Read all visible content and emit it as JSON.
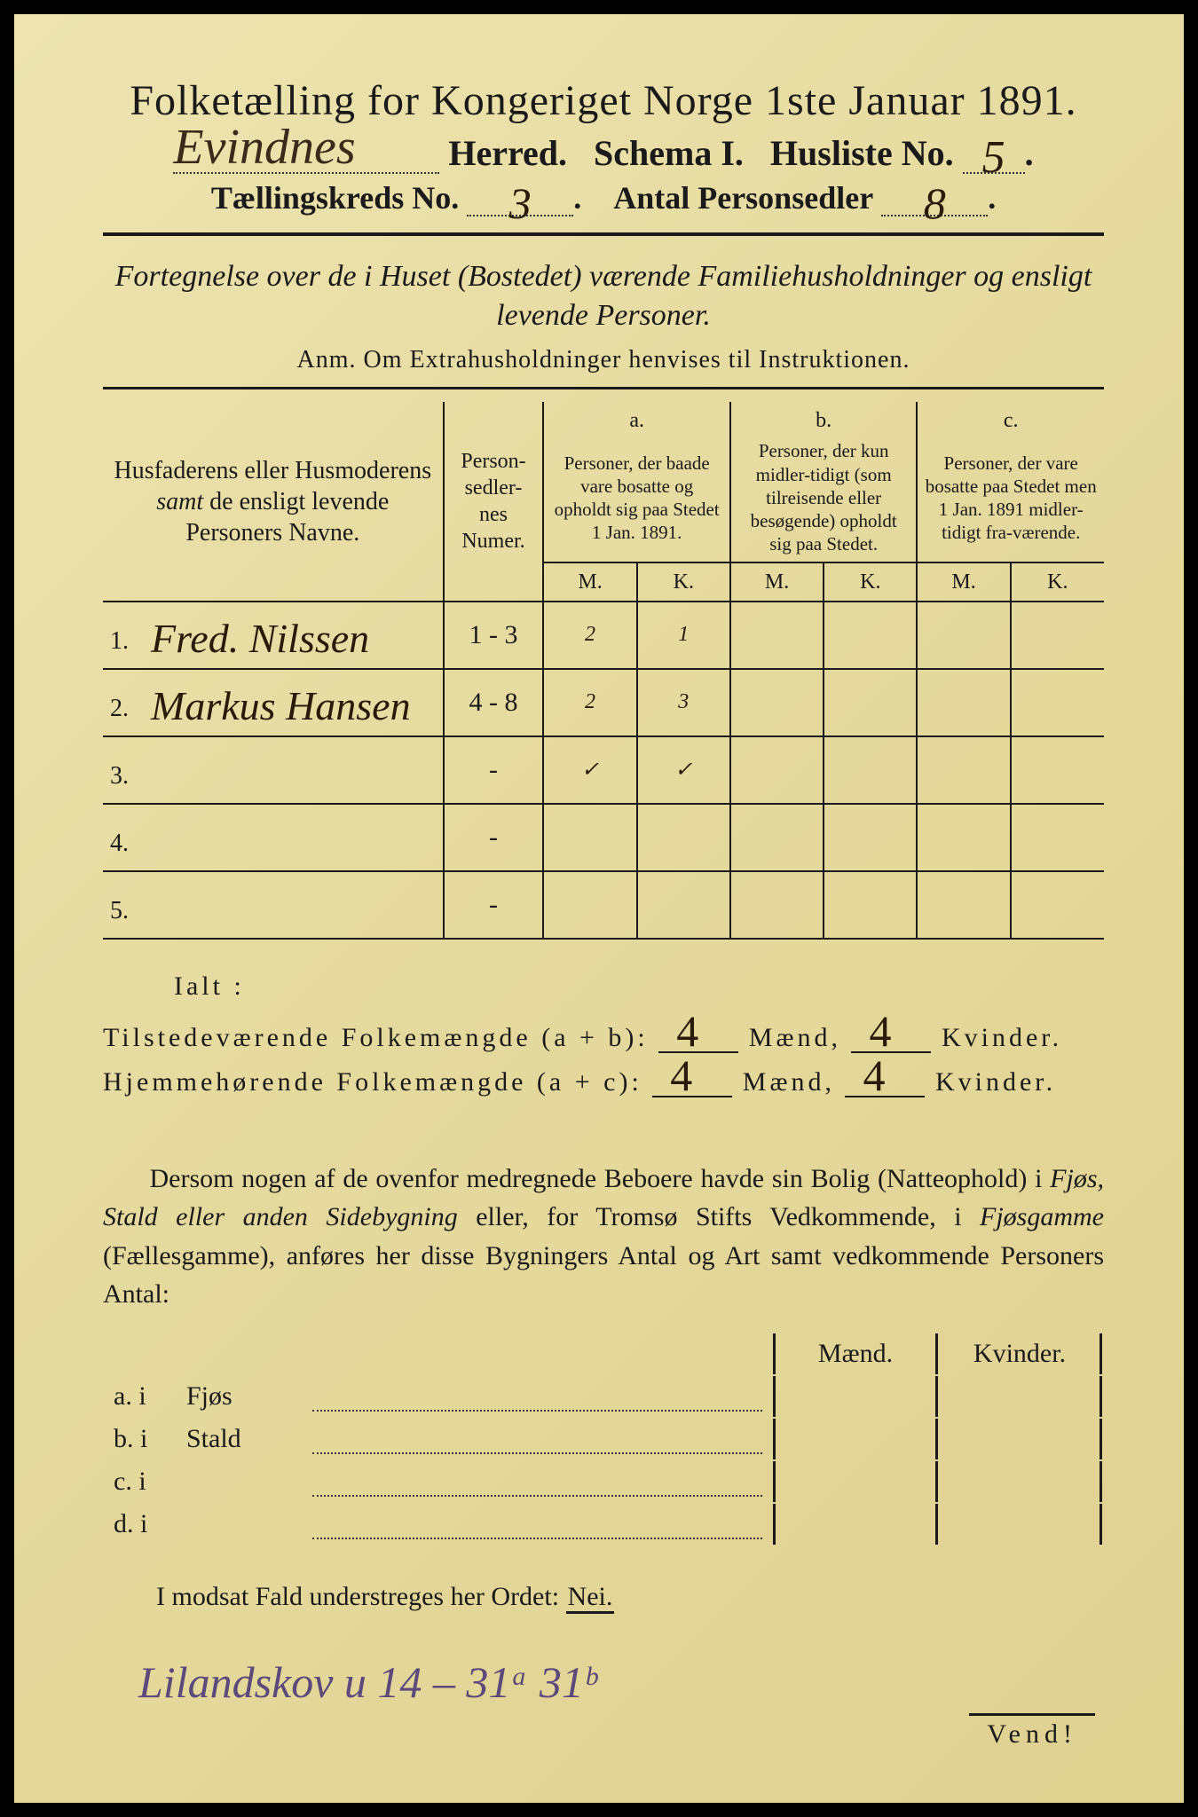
{
  "title": "Folketælling for Kongeriget Norge 1ste Januar 1891.",
  "line2": {
    "herred_hw": "Evindnes",
    "herred_label": "Herred.",
    "schema": "Schema I.",
    "husliste": "Husliste No.",
    "husliste_no_hw": "5"
  },
  "line3": {
    "kreds_label": "Tællingskreds No.",
    "kreds_no_hw": "3",
    "person_label": "Antal Personsedler",
    "person_no_hw": "8"
  },
  "fortegnelse": "Fortegnelse over de i Huset (Bostedet) værende Familiehusholdninger og ensligt levende Personer.",
  "anm": "Anm.  Om Extrahusholdninger henvises til Instruktionen.",
  "table": {
    "head_name": "Husfaderens eller Husmoderens samt de ensligt levende Personers Navne.",
    "head_num": "Person-sedler-nes Numer.",
    "head_a_top": "a.",
    "head_a": "Personer, der baade vare bosatte og opholdt sig paa Stedet 1 Jan. 1891.",
    "head_b_top": "b.",
    "head_b": "Personer, der kun midler-tidigt (som tilreisende eller besøgende) opholdt sig paa Stedet.",
    "head_c_top": "c.",
    "head_c": "Personer, der vare bosatte paa Stedet men 1 Jan. 1891 midler-tidigt fra-værende.",
    "M": "M.",
    "K": "K.",
    "rows": [
      {
        "n": "1.",
        "name": "Fred. Nilssen",
        "num": "1 - 3",
        "aM": "2",
        "aK": "1",
        "bM": "",
        "bK": "",
        "cM": "",
        "cK": ""
      },
      {
        "n": "2.",
        "name": "Markus Hansen",
        "num": "4 - 8",
        "aM": "2",
        "aK": "3",
        "bM": "",
        "bK": "",
        "cM": "",
        "cK": ""
      },
      {
        "n": "3.",
        "name": "",
        "num": "-",
        "aM": "✓",
        "aK": "✓",
        "bM": "",
        "bK": "",
        "cM": "",
        "cK": ""
      },
      {
        "n": "4.",
        "name": "",
        "num": "-",
        "aM": "",
        "aK": "",
        "bM": "",
        "bK": "",
        "cM": "",
        "cK": ""
      },
      {
        "n": "5.",
        "name": "",
        "num": "-",
        "aM": "",
        "aK": "",
        "bM": "",
        "bK": "",
        "cM": "",
        "cK": ""
      }
    ]
  },
  "ialt": "Ialt :",
  "sum1_label": "Tilstedeværende Folkemængde (a + b):",
  "sum2_label": "Hjemmehørende Folkemængde (a + c):",
  "maend": "Mænd,",
  "kvinder": "Kvinder.",
  "sum1_m": "4",
  "sum1_k": "4",
  "sum2_m": "4",
  "sum2_k": "4",
  "dersom": {
    "p1a": "Dersom nogen af de ovenfor medregnede Beboere havde sin Bolig (Natteophold) i ",
    "em1": "Fjøs, Stald eller anden Sidebygning",
    "p1b": " eller, for Tromsø Stifts Vedkommende, i ",
    "em2": "Fjøsgamme",
    "p1c": " (Fællesgamme), anføres her disse Bygningers Antal og Art samt vedkommende Personers Antal:"
  },
  "mk_m": "Mænd.",
  "mk_k": "Kvinder.",
  "side_rows": [
    {
      "l": "a.  i",
      "t": "Fjøs"
    },
    {
      "l": "b.  i",
      "t": "Stald"
    },
    {
      "l": "c.  i",
      "t": ""
    },
    {
      "l": "d.  i",
      "t": ""
    }
  ],
  "imodsat": "I modsat Fald understreges her Ordet: ",
  "nei": "Nei.",
  "footer_hw": "Lilandskov  u 14 – 31ᵃ  31ᵇ",
  "vend": "Vend!"
}
